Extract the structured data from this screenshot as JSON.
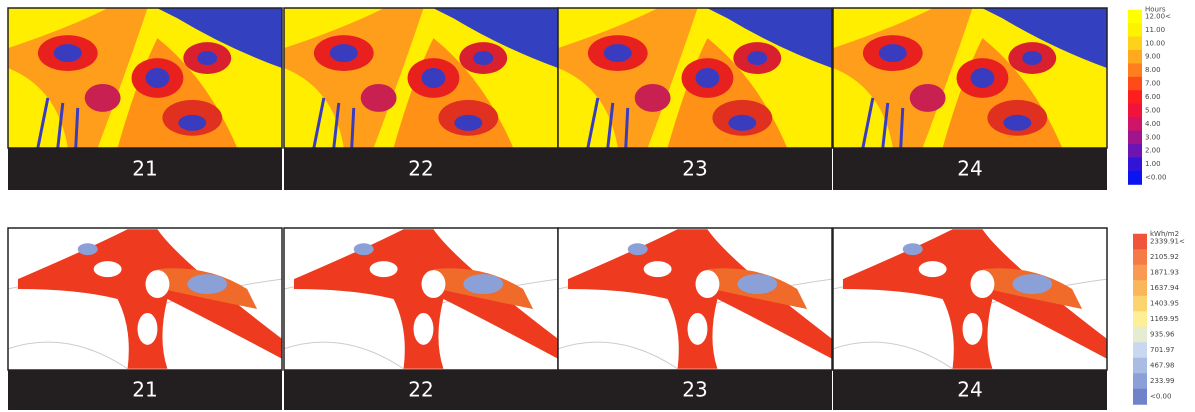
{
  "top": {
    "panels": [
      "21",
      "22",
      "23",
      "24"
    ],
    "legend": {
      "title": "Hours",
      "items": [
        {
          "label": "12.00<",
          "color": "#ffff00"
        },
        {
          "label": "11.00",
          "color": "#fff200"
        },
        {
          "label": "10.00",
          "color": "#ffd21a"
        },
        {
          "label": "9.00",
          "color": "#ffaa1e"
        },
        {
          "label": "8.00",
          "color": "#ff7f1e"
        },
        {
          "label": "7.00",
          "color": "#ff4a1a"
        },
        {
          "label": "6.00",
          "color": "#ff1e1e"
        },
        {
          "label": "5.00",
          "color": "#f0143c"
        },
        {
          "label": "4.00",
          "color": "#d01466"
        },
        {
          "label": "3.00",
          "color": "#a0148c"
        },
        {
          "label": "2.00",
          "color": "#6c14b4"
        },
        {
          "label": "1.00",
          "color": "#3214d8"
        },
        {
          "label": "<0.00",
          "color": "#0a14f0"
        }
      ]
    }
  },
  "bottom": {
    "panels": [
      "21",
      "22",
      "23",
      "24"
    ],
    "legend": {
      "title": "kWh/m2",
      "items": [
        {
          "label": "2339.91<",
          "color": "#f0553c"
        },
        {
          "label": "2105.92",
          "color": "#f47a46"
        },
        {
          "label": "1871.93",
          "color": "#f89a50"
        },
        {
          "label": "1637.94",
          "color": "#fab65a"
        },
        {
          "label": "1403.95",
          "color": "#fcd46e"
        },
        {
          "label": "1169.95",
          "color": "#fcef96"
        },
        {
          "label": "935.96",
          "color": "#e6ecd2"
        },
        {
          "label": "701.97",
          "color": "#c8d8ee"
        },
        {
          "label": "467.98",
          "color": "#a8bce4"
        },
        {
          "label": "233.99",
          "color": "#8ca0d8"
        },
        {
          "label": "<0.00",
          "color": "#6f84c8"
        }
      ]
    }
  }
}
